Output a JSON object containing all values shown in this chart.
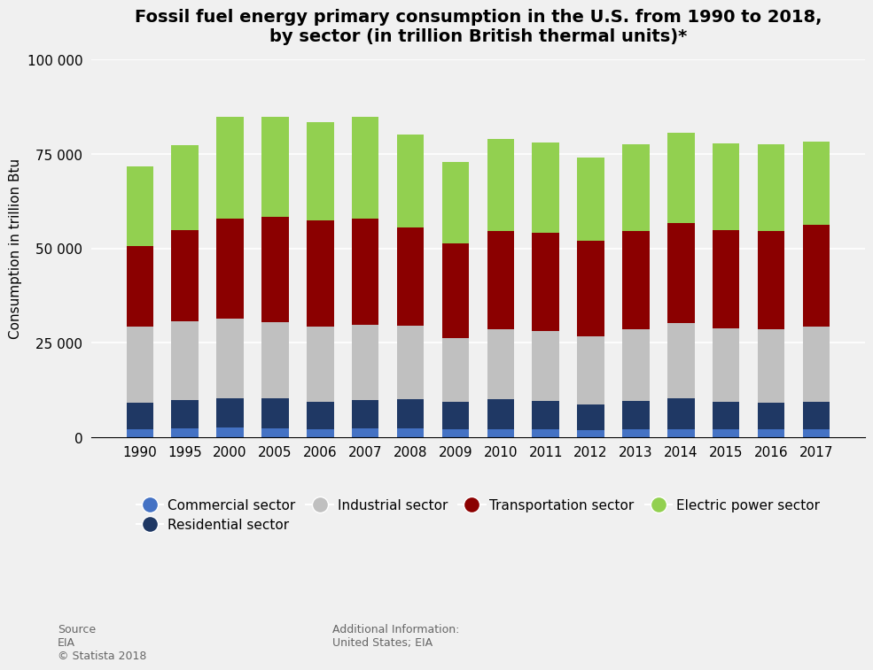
{
  "title": "Fossil fuel energy primary consumption in the U.S. from 1990 to 2018,\nby sector (in trillion British thermal units)*",
  "ylabel": "Consumption in trillion Btu",
  "years": [
    1990,
    1995,
    2000,
    2005,
    2006,
    2007,
    2008,
    2009,
    2010,
    2011,
    2012,
    2013,
    2014,
    2015,
    2016,
    2017
  ],
  "commercial": [
    2200,
    2300,
    2500,
    2400,
    2200,
    2300,
    2300,
    2100,
    2200,
    2100,
    1900,
    2100,
    2200,
    2100,
    2100,
    2100
  ],
  "residential": [
    7000,
    7500,
    7800,
    8000,
    7200,
    7500,
    7800,
    7200,
    7800,
    7500,
    6700,
    7500,
    8000,
    7200,
    7000,
    7200
  ],
  "industrial": [
    20000,
    21000,
    21000,
    20000,
    20000,
    20000,
    19500,
    17000,
    18500,
    18500,
    18000,
    19000,
    20000,
    19500,
    19500,
    20000
  ],
  "transportation": [
    21500,
    24000,
    26500,
    28000,
    28000,
    28000,
    26000,
    25000,
    26000,
    26000,
    25500,
    26000,
    26500,
    26000,
    26000,
    27000
  ],
  "electric_power": [
    21000,
    22500,
    27000,
    26500,
    26000,
    27000,
    24500,
    21500,
    24500,
    24000,
    22000,
    23000,
    24000,
    23000,
    23000,
    22000
  ],
  "colors": {
    "commercial": "#4472C4",
    "residential": "#1F3864",
    "industrial": "#C0C0C0",
    "transportation": "#8B0000",
    "electric_power": "#92D050"
  },
  "ylim": [
    0,
    100000
  ],
  "yticks": [
    0,
    25000,
    50000,
    75000,
    100000
  ],
  "ytick_labels": [
    "0",
    "25 000",
    "50 000",
    "75 000",
    "100 000"
  ],
  "bg_color": "#f0f0f0",
  "source_text": "Source\nEIA\n© Statista 2018",
  "additional_text": "Additional Information:\nUnited States; EIA",
  "legend_labels": [
    "Commercial sector",
    "Residential sector",
    "Industrial sector",
    "Transportation sector",
    "Electric power sector"
  ]
}
